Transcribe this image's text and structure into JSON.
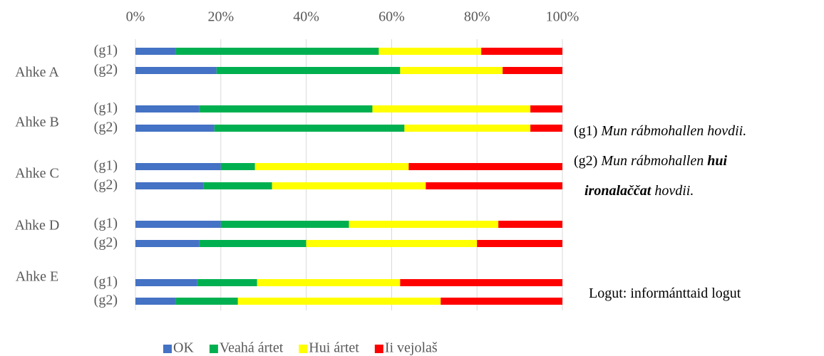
{
  "chart_data": {
    "type": "bar",
    "orientation": "horizontal",
    "stacked": true,
    "groups": [
      "Ahke A",
      "Ahke B",
      "Ahke C",
      "Ahke D",
      "Ahke E"
    ],
    "categories": [
      "(g1)",
      "(g2)",
      "(g1)",
      "(g2)",
      "(g1)",
      "(g2)",
      "(g1)",
      "(g2)",
      "(g1)",
      "(g2)"
    ],
    "series": [
      {
        "name": "OK",
        "color": "#4472c4",
        "values": [
          9.5,
          19,
          15,
          18.5,
          20,
          16,
          20,
          15,
          14.5,
          9.5
        ]
      },
      {
        "name": "Veahá ártet",
        "color": "#00b050",
        "values": [
          47.5,
          43,
          40.5,
          44.5,
          8,
          16,
          30,
          25,
          14,
          14.5
        ]
      },
      {
        "name": "Hui ártet",
        "color": "#ffff00",
        "values": [
          24,
          24,
          37,
          29.5,
          36,
          36,
          35,
          40,
          33.5,
          47.5
        ]
      },
      {
        "name": "Ii vejolaš",
        "color": "#ff0000",
        "values": [
          19,
          14,
          7.5,
          7.5,
          36,
          32,
          15,
          20,
          38,
          28.5
        ]
      }
    ],
    "xlim": [
      0,
      100
    ],
    "xticks": [
      {
        "value": 0,
        "label": "0%"
      },
      {
        "value": 20,
        "label": "20%"
      },
      {
        "value": 40,
        "label": "40%"
      },
      {
        "value": 60,
        "label": "60%"
      },
      {
        "value": 80,
        "label": "80%"
      },
      {
        "value": 100,
        "label": "100%"
      }
    ],
    "grid": true,
    "legend": "bottom",
    "annotations": [
      {
        "lines": [
          [
            {
              "text": "(g1)"
            },
            {
              "text": "Mun rábmohallen hovdii.",
              "style": "italic"
            }
          ]
        ]
      },
      {
        "lines": [
          [
            {
              "text": "(g2)"
            },
            {
              "text": "Mun rábmohallen",
              "style": "italic"
            },
            {
              "text": "hui",
              "style": "bold-italic"
            }
          ],
          [
            {
              "text": "ironalaččat",
              "style": "bold-italic"
            },
            {
              "text": "hovdii.",
              "style": "italic"
            }
          ]
        ]
      },
      {
        "lines": [
          [
            {
              "text": "Logut: informánttaid logut"
            }
          ]
        ]
      }
    ]
  }
}
